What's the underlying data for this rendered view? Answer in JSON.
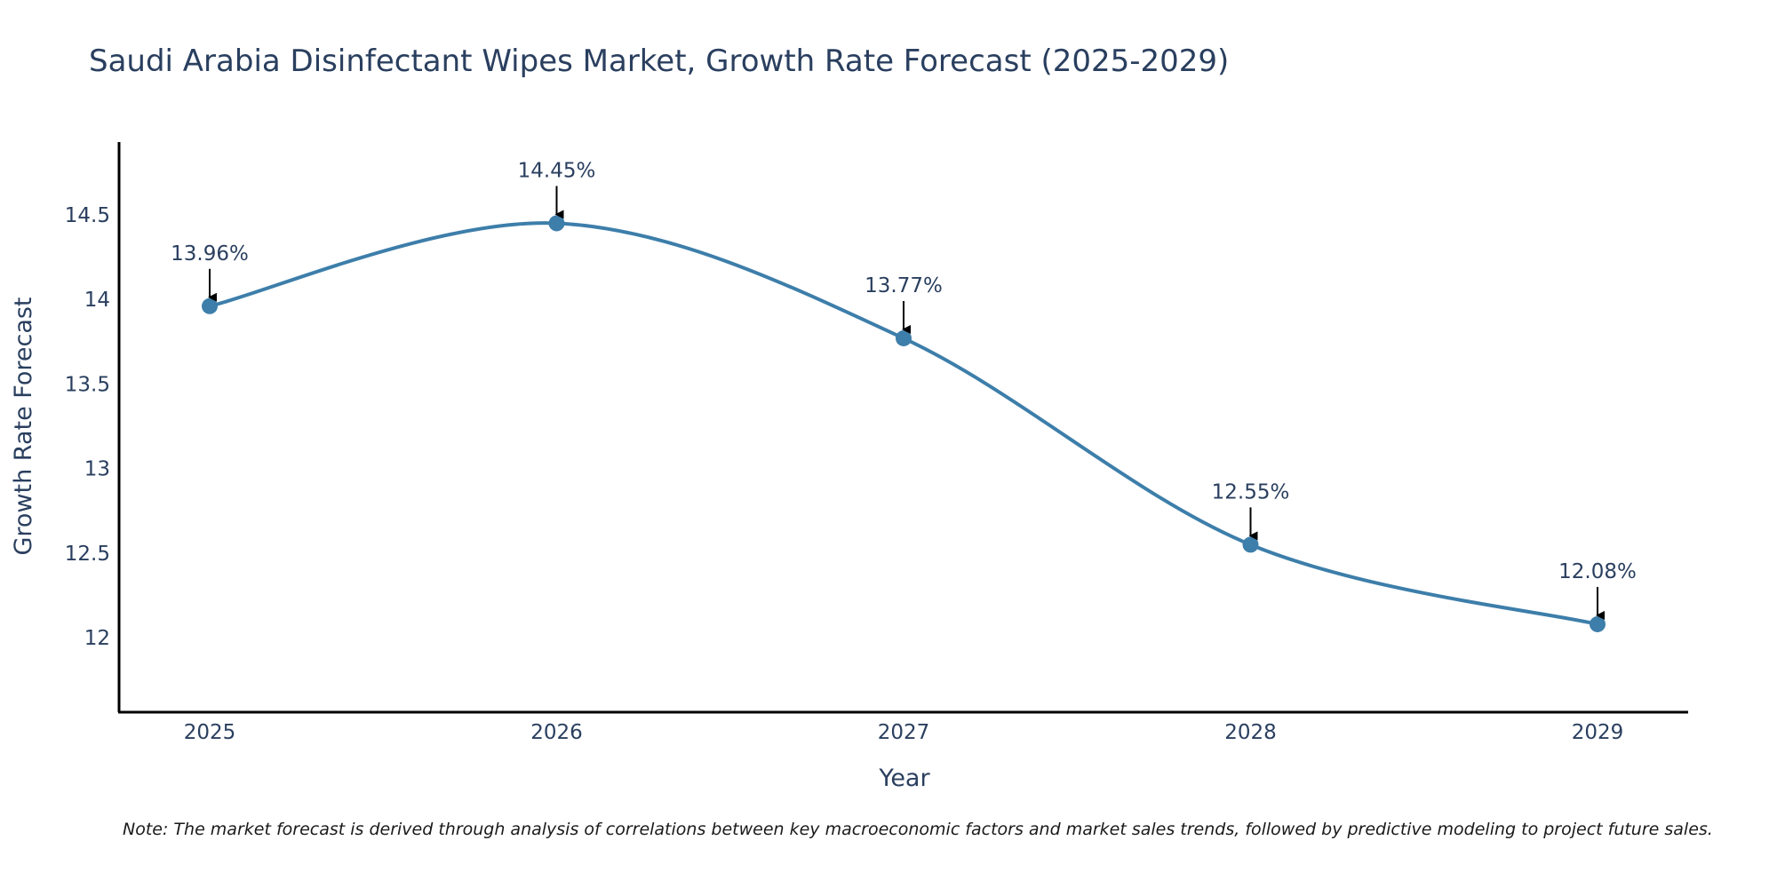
{
  "chart_data": {
    "type": "line",
    "title": "Saudi Arabia Disinfectant Wipes Market, Growth Rate Forecast (2025-2029)",
    "xlabel": "Year",
    "ylabel": "Growth Rate Forecast",
    "categories": [
      "2025",
      "2026",
      "2027",
      "2028",
      "2029"
    ],
    "values": [
      13.96,
      14.45,
      13.77,
      12.55,
      12.08
    ],
    "data_labels": [
      "13.96%",
      "14.45%",
      "13.77%",
      "12.55%",
      "12.08%"
    ],
    "y_ticks": [
      12,
      12.5,
      13,
      13.5,
      14,
      14.5
    ],
    "y_tick_labels": [
      "12",
      "12.5",
      "13",
      "13.5",
      "14",
      "14.5"
    ],
    "ylim": [
      11.56,
      14.93
    ],
    "grid": false,
    "legend": "none",
    "line_color": "#3d7eaa",
    "marker_color": "#3d7eaa",
    "arrow_color": "#000000",
    "note": "Note: The market forecast is derived through analysis of correlations between key macroeconomic factors and market sales trends, followed by predictive modeling to project future sales."
  }
}
